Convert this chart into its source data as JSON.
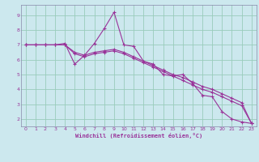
{
  "xlabel": "Windchill (Refroidissement éolien,°C)",
  "bg_color": "#cce8ee",
  "line_color": "#993399",
  "grid_color": "#99ccbb",
  "xlim": [
    -0.5,
    23.5
  ],
  "ylim": [
    1.5,
    9.7
  ],
  "xticks": [
    0,
    1,
    2,
    3,
    4,
    5,
    6,
    7,
    8,
    9,
    10,
    11,
    12,
    13,
    14,
    15,
    16,
    17,
    18,
    19,
    20,
    21,
    22,
    23
  ],
  "yticks": [
    2,
    3,
    4,
    5,
    6,
    7,
    8,
    9
  ],
  "series1_x": [
    0,
    1,
    2,
    3,
    4,
    5,
    6,
    7,
    8,
    9,
    10,
    11,
    12,
    13,
    14,
    15,
    16,
    17,
    18,
    19,
    20,
    21,
    22,
    23
  ],
  "series1_y": [
    7.0,
    7.0,
    7.0,
    7.0,
    7.1,
    5.7,
    6.3,
    7.1,
    8.1,
    9.2,
    7.0,
    6.9,
    5.9,
    5.7,
    5.0,
    4.9,
    5.0,
    4.4,
    3.6,
    3.5,
    2.5,
    2.0,
    1.8,
    1.7
  ],
  "series2_x": [
    0,
    1,
    2,
    3,
    4,
    5,
    6,
    7,
    8,
    9,
    10,
    11,
    12,
    13,
    14,
    15,
    16,
    17,
    18,
    19,
    20,
    21,
    22,
    23
  ],
  "series2_y": [
    7.0,
    7.0,
    7.0,
    7.0,
    7.0,
    6.5,
    6.3,
    6.5,
    6.6,
    6.7,
    6.5,
    6.2,
    5.9,
    5.6,
    5.3,
    5.0,
    4.8,
    4.5,
    4.2,
    4.0,
    3.7,
    3.4,
    3.1,
    1.7
  ],
  "series3_x": [
    0,
    1,
    2,
    3,
    4,
    5,
    6,
    7,
    8,
    9,
    10,
    11,
    12,
    13,
    14,
    15,
    16,
    17,
    18,
    19,
    20,
    21,
    22,
    23
  ],
  "series3_y": [
    7.0,
    7.0,
    7.0,
    7.0,
    7.0,
    6.4,
    6.2,
    6.4,
    6.5,
    6.6,
    6.4,
    6.1,
    5.8,
    5.5,
    5.2,
    4.9,
    4.6,
    4.3,
    4.0,
    3.8,
    3.5,
    3.2,
    2.9,
    1.7
  ]
}
